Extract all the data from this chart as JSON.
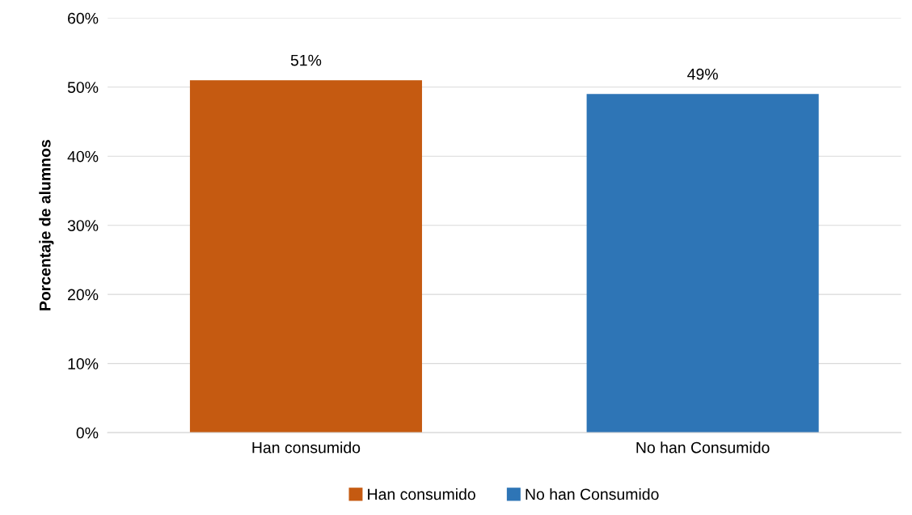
{
  "chart_data": {
    "type": "bar",
    "ylabel": "Porcentaje de alumnos",
    "categories": [
      "Han consumido",
      "No han Consumido"
    ],
    "stacked": true,
    "series": [
      {
        "name": "Han consumido",
        "color": "#c55a11",
        "values": [
          51,
          null
        ],
        "value_labels": [
          "51%",
          null
        ]
      },
      {
        "name": "No han Consumido",
        "color": "#2e75b6",
        "values": [
          null,
          49
        ],
        "value_labels": [
          null,
          "49%"
        ]
      }
    ],
    "ylim": [
      0,
      60
    ],
    "yticks": [
      {
        "value": 0,
        "label": "0%"
      },
      {
        "value": 10,
        "label": "10%"
      },
      {
        "value": 20,
        "label": "20%"
      },
      {
        "value": 30,
        "label": "30%"
      },
      {
        "value": 40,
        "label": "40%"
      },
      {
        "value": 50,
        "label": "50%"
      },
      {
        "value": 60,
        "label": "60%"
      }
    ],
    "grid": "y",
    "legend": "bottom"
  }
}
